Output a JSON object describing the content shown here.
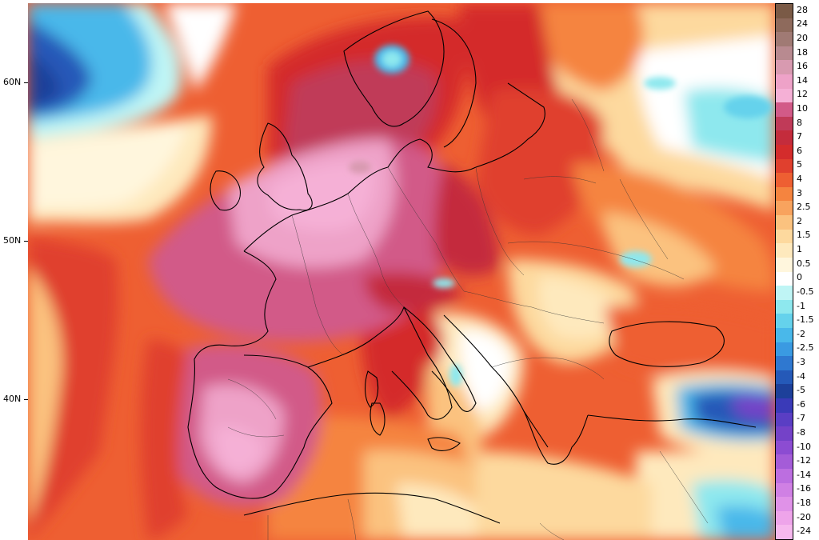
{
  "map": {
    "lat_labels": [
      "60N",
      "50N",
      "40N"
    ]
  },
  "legend": {
    "entries": [
      {
        "label": "28",
        "color": "#7a5a46"
      },
      {
        "label": "24",
        "color": "#8e6a5c"
      },
      {
        "label": "20",
        "color": "#a07a74"
      },
      {
        "label": "18",
        "color": "#b88a90"
      },
      {
        "label": "16",
        "color": "#d89ab0"
      },
      {
        "label": "14",
        "color": "#eea2c8"
      },
      {
        "label": "12",
        "color": "#f5b0d6"
      },
      {
        "label": "10",
        "color": "#d25a88"
      },
      {
        "label": "8",
        "color": "#c03a58"
      },
      {
        "label": "7",
        "color": "#c42c3c"
      },
      {
        "label": "6",
        "color": "#d42c2c"
      },
      {
        "label": "5",
        "color": "#e0402e"
      },
      {
        "label": "4",
        "color": "#ee5f32"
      },
      {
        "label": "3",
        "color": "#f5843f"
      },
      {
        "label": "2.5",
        "color": "#f8a35e"
      },
      {
        "label": "2",
        "color": "#fbc27f"
      },
      {
        "label": "1.5",
        "color": "#fdd99e"
      },
      {
        "label": "1",
        "color": "#fee9bd"
      },
      {
        "label": "0.5",
        "color": "#fff6dd"
      },
      {
        "label": "0",
        "color": "#ffffff"
      },
      {
        "label": "-0.5",
        "color": "#bff5f5"
      },
      {
        "label": "-1",
        "color": "#8ee8ee"
      },
      {
        "label": "-1.5",
        "color": "#65d2ec"
      },
      {
        "label": "-2",
        "color": "#49b8ea"
      },
      {
        "label": "-2.5",
        "color": "#3a9ae2"
      },
      {
        "label": "-3",
        "color": "#2f78d0"
      },
      {
        "label": "-4",
        "color": "#2559b8"
      },
      {
        "label": "-5",
        "color": "#1d409a"
      },
      {
        "label": "-6",
        "color": "#3a3ab8"
      },
      {
        "label": "-7",
        "color": "#5a3ec4"
      },
      {
        "label": "-8",
        "color": "#7442c8"
      },
      {
        "label": "-10",
        "color": "#8c4cd2"
      },
      {
        "label": "-12",
        "color": "#a45cd8"
      },
      {
        "label": "-14",
        "color": "#bc6ee0"
      },
      {
        "label": "-16",
        "color": "#d080e4"
      },
      {
        "label": "-18",
        "color": "#e092e8"
      },
      {
        "label": "-20",
        "color": "#eea4ea"
      },
      {
        "label": "-24",
        "color": "#f6b8ee"
      }
    ]
  }
}
